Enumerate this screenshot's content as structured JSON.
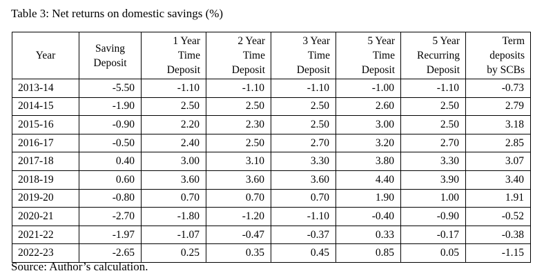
{
  "caption": "Table 3: Net returns on domestic savings (%)",
  "columns": [
    {
      "lines": [
        "Year"
      ]
    },
    {
      "lines": [
        "Saving",
        "Deposit"
      ]
    },
    {
      "lines": [
        "1 Year",
        "Time",
        "Deposit"
      ]
    },
    {
      "lines": [
        "2 Year",
        "Time",
        "Deposit"
      ]
    },
    {
      "lines": [
        "3 Year",
        "Time",
        "Deposit"
      ]
    },
    {
      "lines": [
        "5 Year",
        "Time",
        "Deposit"
      ]
    },
    {
      "lines": [
        "5 Year",
        "Recurring",
        "Deposit"
      ]
    },
    {
      "lines": [
        "Term",
        "deposits",
        "by SCBs"
      ]
    }
  ],
  "rows": [
    {
      "year": "2013-14",
      "values": [
        "-5.50",
        "-1.10",
        "-1.10",
        "-1.10",
        "-1.00",
        "-1.10",
        "-0.73"
      ]
    },
    {
      "year": "2014-15",
      "values": [
        "-1.90",
        "2.50",
        "2.50",
        "2.50",
        "2.60",
        "2.50",
        "2.79"
      ]
    },
    {
      "year": "2015-16",
      "values": [
        "-0.90",
        "2.20",
        "2.30",
        "2.50",
        "3.00",
        "2.50",
        "3.18"
      ]
    },
    {
      "year": "2016-17",
      "values": [
        "-0.50",
        "2.40",
        "2.50",
        "2.70",
        "3.20",
        "2.70",
        "2.85"
      ]
    },
    {
      "year": "2017-18",
      "values": [
        "0.40",
        "3.00",
        "3.10",
        "3.30",
        "3.80",
        "3.30",
        "3.07"
      ]
    },
    {
      "year": "2018-19",
      "values": [
        "0.60",
        "3.60",
        "3.60",
        "3.60",
        "4.40",
        "3.90",
        "3.40"
      ]
    },
    {
      "year": "2019-20",
      "values": [
        "-0.80",
        "0.70",
        "0.70",
        "0.70",
        "1.90",
        "1.00",
        "1.91"
      ]
    },
    {
      "year": "2020-21",
      "values": [
        "-2.70",
        "-1.80",
        "-1.20",
        "-1.10",
        "-0.40",
        "-0.90",
        "-0.52"
      ]
    },
    {
      "year": "2021-22",
      "values": [
        "-1.97",
        "-1.07",
        "-0.47",
        "-0.37",
        "0.33",
        "-0.17",
        "-0.38"
      ]
    },
    {
      "year": "2022-23",
      "values": [
        "-2.65",
        "0.25",
        "0.35",
        "0.45",
        "0.85",
        "0.05",
        "-1.15"
      ]
    }
  ],
  "source": "Source: Author’s calculation."
}
